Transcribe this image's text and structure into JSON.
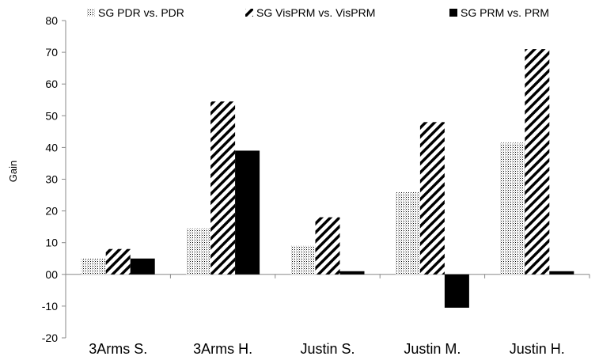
{
  "chart_data": {
    "type": "bar",
    "categories": [
      "3Arms S.",
      "3Arms H.",
      "Justin S.",
      "Justin M.",
      "Justin H."
    ],
    "series": [
      {
        "name": "SG PDR vs. PDR",
        "pattern": "dots",
        "values": [
          5,
          14.5,
          9,
          26,
          41.5
        ]
      },
      {
        "name": "SG VisPRM vs. VisPRM",
        "pattern": "diagonal-stripes",
        "values": [
          8,
          54.5,
          18,
          48,
          71
        ]
      },
      {
        "name": "SG PRM vs. PRM",
        "pattern": "solid-black",
        "values": [
          5,
          39,
          1,
          -10.5,
          1
        ]
      }
    ],
    "title": "",
    "xlabel": "",
    "ylabel": "Gain",
    "ylim": [
      -20,
      80
    ],
    "yticks": [
      -20,
      -10,
      0,
      10,
      20,
      30,
      40,
      50,
      60,
      70,
      80
    ],
    "ytick_labels": [
      "-20",
      "-10",
      "00",
      "10",
      "20",
      "30",
      "40",
      "50",
      "60",
      "70",
      "80"
    ],
    "grid": false,
    "legend_position": "top",
    "colors": {
      "axis": "#888888",
      "solid": "#000000",
      "pattern": "#000000"
    }
  }
}
